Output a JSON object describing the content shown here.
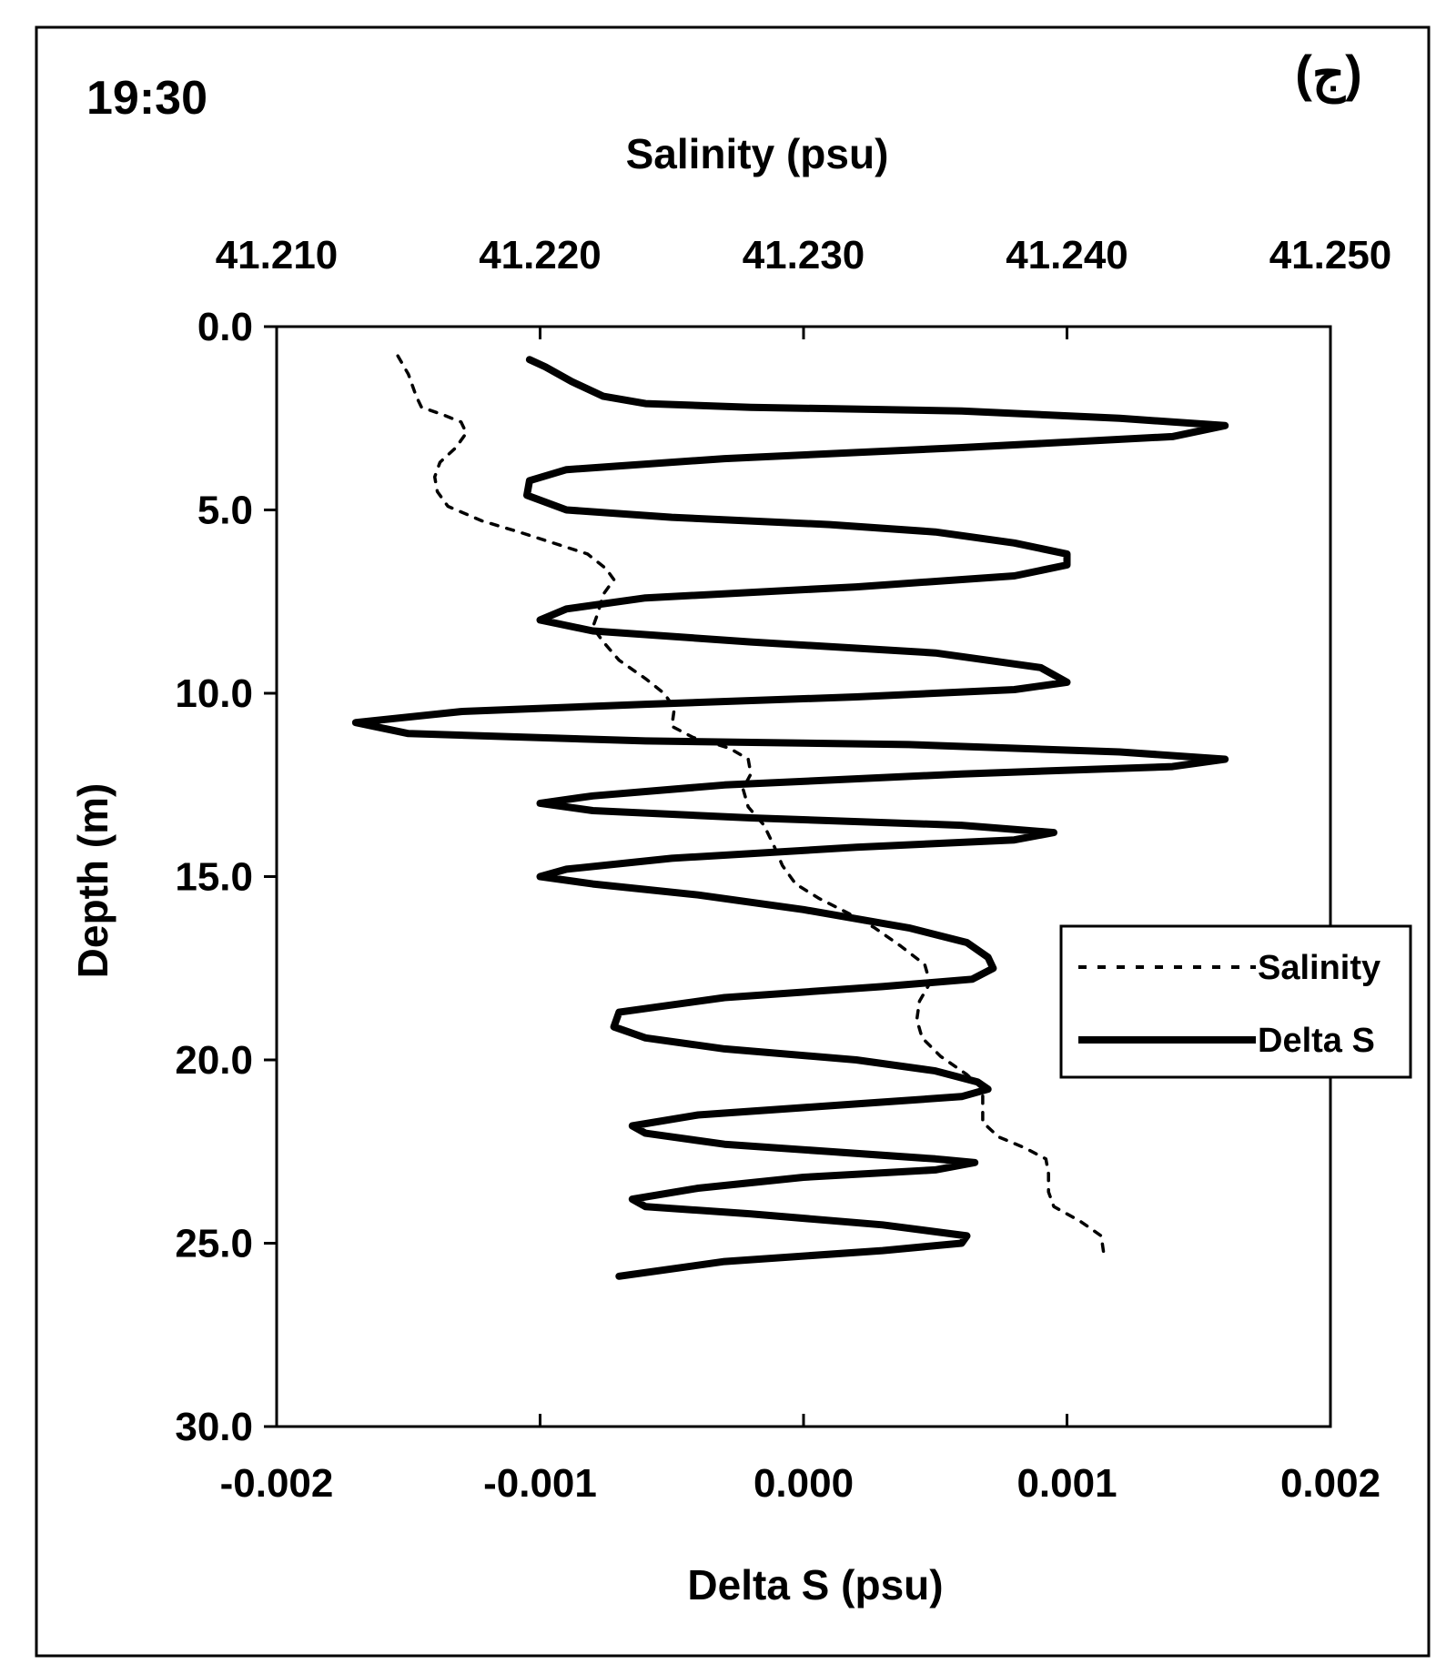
{
  "chart_data": {
    "type": "line",
    "time_label": "19:30",
    "panel_label": "(ج)",
    "top_axis": {
      "label": "Salinity (psu)",
      "range": [
        41.21,
        41.25
      ],
      "ticks": [
        "41.210",
        "41.220",
        "41.230",
        "41.240",
        "41.250"
      ]
    },
    "bottom_axis": {
      "label": "Delta S (psu)",
      "range": [
        -0.002,
        0.002
      ],
      "ticks": [
        "-0.002",
        "-0.001",
        "0.000",
        "0.001",
        "0.002"
      ]
    },
    "y_axis": {
      "label": "Depth (m)",
      "range": [
        0,
        30
      ],
      "inverted": true,
      "ticks": [
        "0.0",
        "5.0",
        "10.0",
        "15.0",
        "20.0",
        "25.0",
        "30.0"
      ]
    },
    "legend": {
      "placement": "right",
      "entries": [
        {
          "label": "Salinity",
          "style": "dashed"
        },
        {
          "label": "Delta S",
          "style": "solid"
        }
      ]
    },
    "grid": false,
    "series": [
      {
        "name": "Salinity",
        "axis": "top",
        "style": "dashed",
        "color": "#000000",
        "points": [
          [
            41.2146,
            0.8
          ],
          [
            41.215,
            1.3
          ],
          [
            41.2153,
            1.9
          ],
          [
            41.2155,
            2.2
          ],
          [
            41.2163,
            2.4
          ],
          [
            41.217,
            2.6
          ],
          [
            41.2172,
            2.9
          ],
          [
            41.2168,
            3.3
          ],
          [
            41.2162,
            3.7
          ],
          [
            41.216,
            4.1
          ],
          [
            41.2161,
            4.5
          ],
          [
            41.2165,
            4.9
          ],
          [
            41.2178,
            5.3
          ],
          [
            41.2192,
            5.6
          ],
          [
            41.2205,
            5.9
          ],
          [
            41.2218,
            6.2
          ],
          [
            41.2225,
            6.6
          ],
          [
            41.2228,
            6.9
          ],
          [
            41.2224,
            7.3
          ],
          [
            41.2222,
            7.8
          ],
          [
            41.222,
            8.2
          ],
          [
            41.2224,
            8.6
          ],
          [
            41.223,
            9.1
          ],
          [
            41.224,
            9.6
          ],
          [
            41.2247,
            10.0
          ],
          [
            41.2251,
            10.4
          ],
          [
            41.225,
            10.9
          ],
          [
            41.2258,
            11.2
          ],
          [
            41.2272,
            11.5
          ],
          [
            41.2279,
            11.8
          ],
          [
            41.228,
            12.2
          ],
          [
            41.2277,
            12.6
          ],
          [
            41.2279,
            13.1
          ],
          [
            41.2285,
            13.6
          ],
          [
            41.2289,
            14.2
          ],
          [
            41.2292,
            14.7
          ],
          [
            41.2297,
            15.2
          ],
          [
            41.2306,
            15.6
          ],
          [
            41.2317,
            16.0
          ],
          [
            41.2327,
            16.4
          ],
          [
            41.2337,
            16.9
          ],
          [
            41.2346,
            17.4
          ],
          [
            41.2348,
            17.9
          ],
          [
            41.2344,
            18.4
          ],
          [
            41.2343,
            18.9
          ],
          [
            41.2345,
            19.4
          ],
          [
            41.2352,
            19.9
          ],
          [
            41.2362,
            20.4
          ],
          [
            41.2368,
            20.8
          ],
          [
            41.2368,
            21.3
          ],
          [
            41.2368,
            21.7
          ],
          [
            41.2374,
            22.1
          ],
          [
            41.2384,
            22.4
          ],
          [
            41.2392,
            22.7
          ],
          [
            41.2393,
            23.1
          ],
          [
            41.2393,
            23.6
          ],
          [
            41.2395,
            24.0
          ],
          [
            41.2405,
            24.4
          ],
          [
            41.2413,
            24.8
          ],
          [
            41.2414,
            25.3
          ]
        ]
      },
      {
        "name": "Delta S",
        "axis": "bottom",
        "style": "solid",
        "color": "#000000",
        "points": [
          [
            -0.00104,
            0.9
          ],
          [
            -0.00098,
            1.1
          ],
          [
            -0.00088,
            1.5
          ],
          [
            -0.00076,
            1.9
          ],
          [
            -0.0006,
            2.1
          ],
          [
            -0.0002,
            2.2
          ],
          [
            0.0006,
            2.3
          ],
          [
            0.0012,
            2.5
          ],
          [
            0.0016,
            2.7
          ],
          [
            0.0014,
            3.0
          ],
          [
            0.0006,
            3.3
          ],
          [
            -0.0003,
            3.6
          ],
          [
            -0.0009,
            3.9
          ],
          [
            -0.00104,
            4.2
          ],
          [
            -0.00105,
            4.6
          ],
          [
            -0.0009,
            5.0
          ],
          [
            -0.0005,
            5.2
          ],
          [
            0.0001,
            5.4
          ],
          [
            0.0005,
            5.6
          ],
          [
            0.0008,
            5.9
          ],
          [
            0.001,
            6.2
          ],
          [
            0.001,
            6.5
          ],
          [
            0.0008,
            6.8
          ],
          [
            0.0002,
            7.1
          ],
          [
            -0.0006,
            7.4
          ],
          [
            -0.0009,
            7.7
          ],
          [
            -0.001,
            8.0
          ],
          [
            -0.0008,
            8.3
          ],
          [
            -0.0002,
            8.6
          ],
          [
            0.0005,
            8.9
          ],
          [
            0.0009,
            9.3
          ],
          [
            0.001,
            9.7
          ],
          [
            0.0008,
            9.9
          ],
          [
            0.0002,
            10.1
          ],
          [
            -0.0006,
            10.3
          ],
          [
            -0.0013,
            10.5
          ],
          [
            -0.0017,
            10.8
          ],
          [
            -0.0015,
            11.1
          ],
          [
            -0.0006,
            11.3
          ],
          [
            0.0004,
            11.4
          ],
          [
            0.0012,
            11.6
          ],
          [
            0.0016,
            11.8
          ],
          [
            0.0014,
            12.0
          ],
          [
            0.0006,
            12.2
          ],
          [
            -0.0003,
            12.5
          ],
          [
            -0.0008,
            12.8
          ],
          [
            -0.001,
            13.0
          ],
          [
            -0.0008,
            13.2
          ],
          [
            -0.0002,
            13.4
          ],
          [
            0.0006,
            13.6
          ],
          [
            0.00095,
            13.8
          ],
          [
            0.0008,
            14.0
          ],
          [
            0.0002,
            14.2
          ],
          [
            -0.0005,
            14.5
          ],
          [
            -0.0009,
            14.8
          ],
          [
            -0.001,
            15.0
          ],
          [
            -0.0008,
            15.2
          ],
          [
            -0.0004,
            15.5
          ],
          [
            0.0,
            15.9
          ],
          [
            0.0004,
            16.4
          ],
          [
            0.00062,
            16.8
          ],
          [
            0.0007,
            17.2
          ],
          [
            0.00072,
            17.5
          ],
          [
            0.00064,
            17.8
          ],
          [
            0.0003,
            18.0
          ],
          [
            -0.0003,
            18.3
          ],
          [
            -0.0007,
            18.7
          ],
          [
            -0.00072,
            19.1
          ],
          [
            -0.0006,
            19.4
          ],
          [
            -0.0003,
            19.7
          ],
          [
            0.0002,
            20.0
          ],
          [
            0.0005,
            20.3
          ],
          [
            0.00066,
            20.6
          ],
          [
            0.0007,
            20.8
          ],
          [
            0.0006,
            21.0
          ],
          [
            0.0002,
            21.2
          ],
          [
            -0.0004,
            21.5
          ],
          [
            -0.00065,
            21.8
          ],
          [
            -0.0006,
            22.0
          ],
          [
            -0.0003,
            22.3
          ],
          [
            0.0001,
            22.5
          ],
          [
            0.0005,
            22.7
          ],
          [
            0.00065,
            22.8
          ],
          [
            0.0005,
            23.0
          ],
          [
            0.0,
            23.2
          ],
          [
            -0.0004,
            23.5
          ],
          [
            -0.00065,
            23.8
          ],
          [
            -0.0006,
            24.0
          ],
          [
            -0.0002,
            24.2
          ],
          [
            0.0003,
            24.5
          ],
          [
            0.00062,
            24.8
          ],
          [
            0.0006,
            25.0
          ],
          [
            0.0003,
            25.2
          ],
          [
            -0.0003,
            25.5
          ],
          [
            -0.0007,
            25.9
          ]
        ]
      }
    ]
  }
}
